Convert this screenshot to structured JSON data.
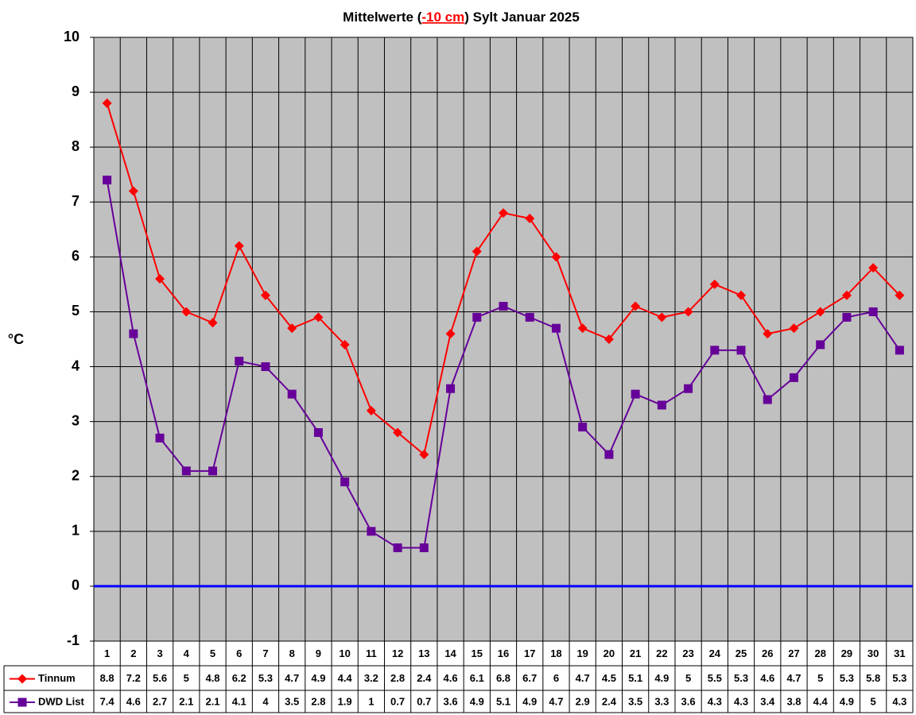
{
  "chart_data": {
    "type": "line",
    "title_parts": [
      "Mittelwerte (",
      "-10 cm",
      ") Sylt Januar 2025"
    ],
    "title_highlight_color": "#ff0000",
    "y_label": "°C",
    "categories": [
      "1",
      "2",
      "3",
      "4",
      "5",
      "6",
      "7",
      "8",
      "9",
      "10",
      "11",
      "12",
      "13",
      "14",
      "15",
      "16",
      "17",
      "18",
      "19",
      "20",
      "21",
      "22",
      "23",
      "24",
      "25",
      "26",
      "27",
      "28",
      "29",
      "30",
      "31"
    ],
    "series": [
      {
        "name": "Tinnum",
        "color": "#ff0000",
        "marker": "diamond",
        "values": [
          8.8,
          7.2,
          5.6,
          5,
          4.8,
          6.2,
          5.3,
          4.7,
          4.9,
          4.4,
          3.2,
          2.8,
          2.4,
          4.6,
          6.1,
          6.8,
          6.7,
          6,
          4.7,
          4.5,
          5.1,
          4.9,
          5,
          5.5,
          5.3,
          4.6,
          4.7,
          5,
          5.3,
          5.8,
          5.3
        ]
      },
      {
        "name": "DWD List",
        "color": "#660099",
        "marker": "square",
        "values": [
          7.4,
          4.6,
          2.7,
          2.1,
          2.1,
          4.1,
          4,
          3.5,
          2.8,
          1.9,
          1,
          0.7,
          0.7,
          3.6,
          4.9,
          5.1,
          4.9,
          4.7,
          2.9,
          2.4,
          3.5,
          3.3,
          3.6,
          4.3,
          4.3,
          3.4,
          3.8,
          4.4,
          4.9,
          5,
          4.3
        ]
      }
    ],
    "ylim": [
      -1,
      10
    ],
    "yticks": [
      -1,
      0,
      1,
      2,
      3,
      4,
      5,
      6,
      7,
      8,
      9,
      10
    ],
    "grid": true,
    "plot_background": "#c0c0c0",
    "zero_line_color": "#0000ff",
    "data_table": true
  }
}
